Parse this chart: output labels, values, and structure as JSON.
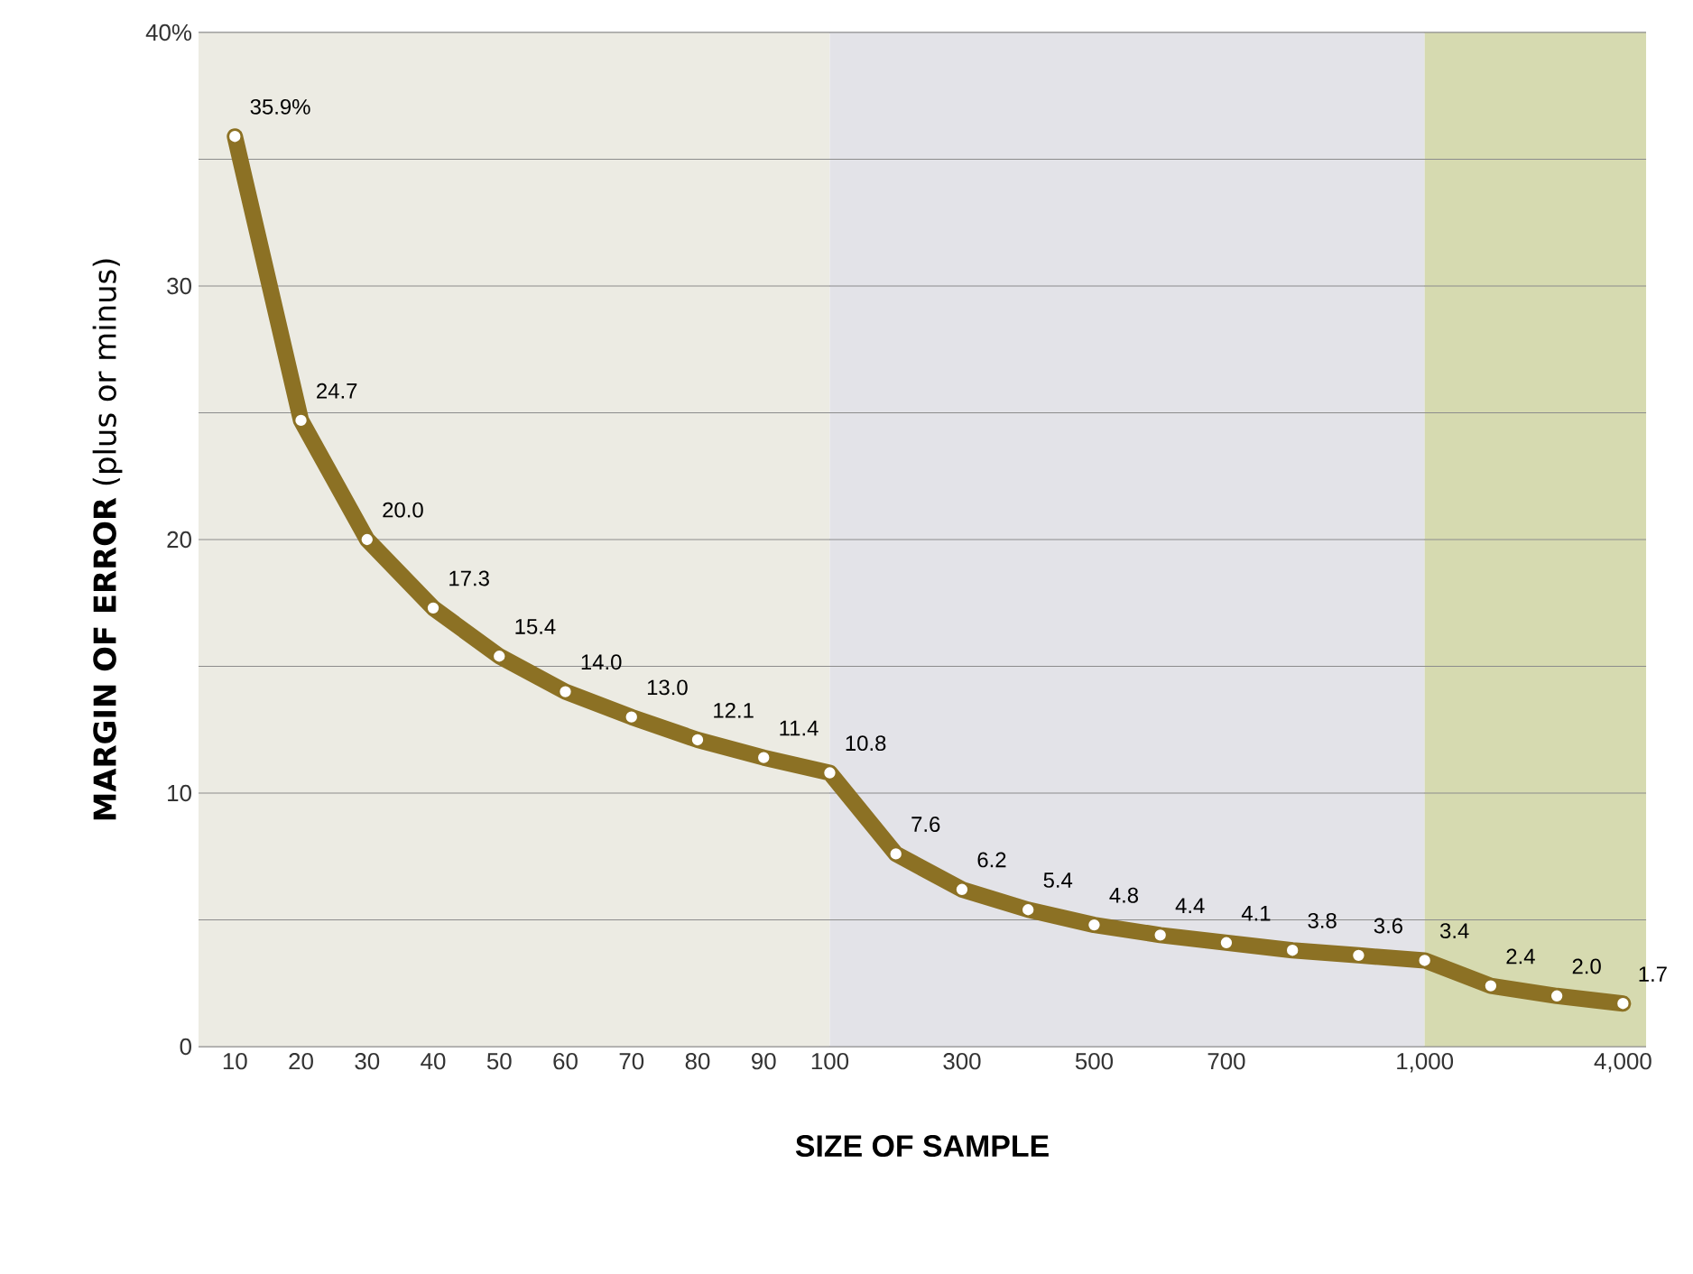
{
  "chart_data": {
    "type": "line",
    "xlabel": "SIZE OF SAMPLE",
    "ylabel": "**MARGIN OF ERROR** (plus or minus)",
    "categories": [
      "10",
      "20",
      "30",
      "40",
      "50",
      "60",
      "70",
      "80",
      "90",
      "100",
      null,
      "300",
      null,
      "500",
      null,
      "700",
      null,
      null,
      "1,000",
      null,
      null,
      "4,000"
    ],
    "series": [
      {
        "color": "#8c7124",
        "values": [
          35.9,
          24.7,
          20.0,
          17.3,
          15.4,
          14.0,
          13.0,
          12.1,
          11.4,
          10.8,
          7.6,
          6.2,
          5.4,
          4.8,
          4.4,
          4.1,
          3.8,
          3.6,
          3.4,
          2.4,
          2.0,
          1.7
        ],
        "value_labels": [
          "35.9%",
          "24.7",
          "20.0",
          "17.3",
          "15.4",
          "14.0",
          "13.0",
          "12.1",
          "11.4",
          "10.8",
          "7.6",
          "6.2",
          "5.4",
          "4.8",
          "4.4",
          "4.1",
          "3.8",
          "3.6",
          "3.4",
          "2.4",
          "2.0",
          "1.7"
        ]
      }
    ],
    "ylim": [
      0,
      40
    ],
    "yticks": [
      0,
      {
        "value": 5,
        "label": null
      },
      10,
      {
        "value": 15,
        "label": null
      },
      20,
      {
        "value": 25,
        "label": null
      },
      30,
      {
        "value": 35,
        "label": null
      },
      {
        "value": 40,
        "label": "40%"
      }
    ],
    "grid": "y",
    "marker": "circle",
    "line_style": "solid",
    "bands": [
      {
        "axis": "x",
        "from": "10",
        "to": "100",
        "color": "#ecebe3"
      },
      {
        "axis": "x",
        "from": "100",
        "to": "1,000",
        "color": "#e3e3e8"
      },
      {
        "axis": "x",
        "from": "1,000",
        "to": "4,000",
        "color": "#d6dab0"
      }
    ]
  }
}
